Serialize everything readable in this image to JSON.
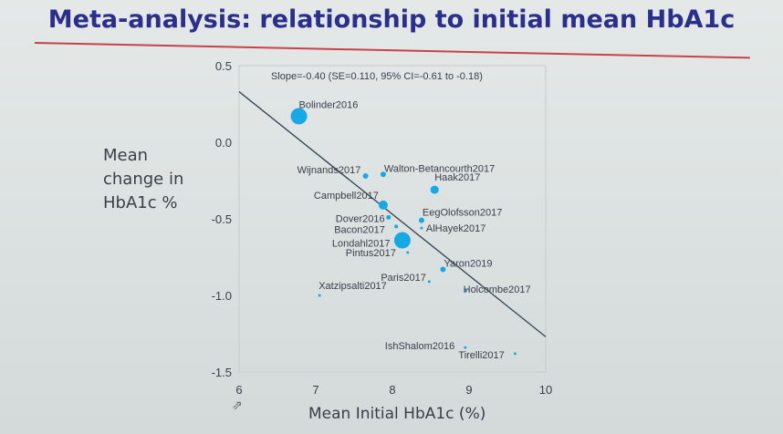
{
  "slide": {
    "title": "Meta-analysis: relationship to initial mean HbA1c",
    "y_axis_label_lines": [
      "Mean",
      "change in",
      "HbA1c %"
    ],
    "x_axis_label": "Mean Initial HbA1c (%)"
  },
  "colors": {
    "title": "#2a2e8c",
    "rule": "#c8414b",
    "point": "#15a9e6",
    "line": "#3a4a55"
  },
  "icons": {
    "cursor": "mouse-pointer-icon"
  },
  "chart_data": {
    "type": "scatter",
    "annotation": "Slope=-0.40 (SE=0.110, 95% CI=-0.61 to -0.18)",
    "xlim": [
      6,
      10
    ],
    "ylim": [
      -1.5,
      0.5
    ],
    "xticks": [
      "6",
      "7",
      "8",
      "9",
      "10"
    ],
    "yticks": [
      "0.5",
      "0.0",
      "-0.5",
      "-1.0",
      "-1.5"
    ],
    "regression": {
      "x": [
        6.0,
        10.0
      ],
      "y": [
        0.33,
        -1.27
      ]
    },
    "points": [
      {
        "label": "Bolinder2016",
        "x": 6.78,
        "y": 0.17,
        "size": 9
      },
      {
        "label": "Wijnands2017",
        "x": 7.65,
        "y": -0.22,
        "size": 3
      },
      {
        "label": "Walton-Betancourth2017",
        "x": 7.88,
        "y": -0.21,
        "size": 3
      },
      {
        "label": "Haak2017",
        "x": 8.55,
        "y": -0.31,
        "size": 4.5
      },
      {
        "label": "Campbell2017",
        "x": 7.88,
        "y": -0.41,
        "size": 5
      },
      {
        "label": "EegOlofsson2017",
        "x": 8.38,
        "y": -0.51,
        "size": 3
      },
      {
        "label": "Dover2016",
        "x": 7.95,
        "y": -0.49,
        "size": 2.5
      },
      {
        "label": "Bacon2017",
        "x": 8.05,
        "y": -0.55,
        "size": 2
      },
      {
        "label": "Londahl2017",
        "x": 8.13,
        "y": -0.64,
        "size": 9
      },
      {
        "label": "AlHayek2017",
        "x": 8.38,
        "y": -0.56,
        "size": 1.5
      },
      {
        "label": "Pintus2017",
        "x": 8.2,
        "y": -0.72,
        "size": 1.5
      },
      {
        "label": "Yaron2019",
        "x": 8.66,
        "y": -0.83,
        "size": 3
      },
      {
        "label": "Paris2017",
        "x": 8.48,
        "y": -0.91,
        "size": 1.5
      },
      {
        "label": "Holcombe2017",
        "x": 8.96,
        "y": -0.97,
        "size": 1.5
      },
      {
        "label": "Xatzipsalti2017",
        "x": 7.05,
        "y": -1.0,
        "size": 1.5
      },
      {
        "label": "IshShalom2016",
        "x": 8.95,
        "y": -1.34,
        "size": 1.5
      },
      {
        "label": "Tirelli2017",
        "x": 9.6,
        "y": -1.38,
        "size": 1.5
      }
    ]
  }
}
